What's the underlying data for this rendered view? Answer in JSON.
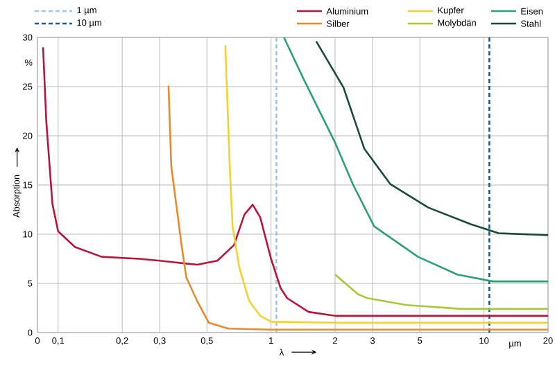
{
  "chart_data": {
    "type": "line",
    "xlabel": "λ",
    "ylabel": "Absorption",
    "log": "x",
    "xlim": [
      0.08,
      20
    ],
    "ylim": [
      0,
      30
    ],
    "xticks": [
      {
        "value": 0.08,
        "label": "0"
      },
      {
        "value": 0.1,
        "label": "0,1"
      },
      {
        "value": 0.2,
        "label": "0,2"
      },
      {
        "value": 0.3,
        "label": "0,3"
      },
      {
        "value": 0.5,
        "label": "0,5"
      },
      1,
      2,
      3,
      5,
      10,
      20
    ],
    "yticks": [
      0,
      5,
      10,
      15,
      20,
      25,
      30
    ],
    "grid": true,
    "legend": "top",
    "annotations": [
      "%",
      "µm"
    ],
    "ref_lines": [
      {
        "axis": "x",
        "value": 1.06,
        "label": "1 µm",
        "color": "#9cc8e8",
        "line_style": "dashed"
      },
      {
        "axis": "x",
        "value": 10.6,
        "label": "10 µm",
        "color": "#1f5a8c",
        "line_style": "dashed"
      }
    ],
    "series": [
      {
        "name": "Aluminium",
        "color": "#b5173a",
        "x": [
          0.085,
          0.088,
          0.094,
          0.1,
          0.12,
          0.16,
          0.24,
          0.3,
          0.45,
          0.56,
          0.67,
          0.75,
          0.82,
          0.89,
          1.0,
          1.11,
          1.19,
          1.5,
          1.87,
          2,
          5,
          20
        ],
        "values": [
          29.0,
          21.5,
          13.1,
          10.3,
          8.7,
          7.7,
          7.5,
          7.3,
          6.9,
          7.3,
          8.9,
          12.0,
          13.0,
          11.7,
          7.5,
          4.5,
          3.5,
          2.1,
          1.8,
          1.7,
          1.7,
          1.7
        ]
      },
      {
        "name": "Silber",
        "color": "#e8892c",
        "x": [
          0.33,
          0.34,
          0.38,
          0.4,
          0.45,
          0.51,
          0.63,
          1,
          20
        ],
        "values": [
          25.1,
          16.9,
          8.9,
          5.6,
          3.2,
          1.0,
          0.4,
          0.3,
          0.3
        ]
      },
      {
        "name": "Kupfer",
        "color": "#f2d230",
        "x": [
          0.61,
          0.64,
          0.66,
          0.71,
          0.79,
          0.89,
          1,
          2,
          20
        ],
        "values": [
          29.2,
          16.9,
          10.8,
          6.6,
          3.2,
          1.7,
          1.1,
          1.0,
          1.0
        ]
      },
      {
        "name": "Molybdän",
        "color": "#a8c83a",
        "x": [
          2,
          2.56,
          2.83,
          4.33,
          7.9,
          20
        ],
        "values": [
          5.9,
          3.9,
          3.5,
          2.8,
          2.4,
          2.4
        ]
      },
      {
        "name": "Eisen",
        "color": "#2e9e7a",
        "x": [
          1.15,
          1.42,
          2,
          2.42,
          3.05,
          4.9,
          7.5,
          11.0,
          20
        ],
        "values": [
          30,
          25.8,
          19.3,
          15.1,
          10.8,
          7.7,
          5.9,
          5.2,
          5.2
        ]
      },
      {
        "name": "Stahl",
        "color": "#1a4a38",
        "x": [
          1.63,
          2.19,
          2.74,
          3.63,
          5.48,
          8.7,
          11.7,
          20
        ],
        "values": [
          29.6,
          24.9,
          18.7,
          15.1,
          12.7,
          11.0,
          10.1,
          9.9
        ]
      }
    ]
  }
}
